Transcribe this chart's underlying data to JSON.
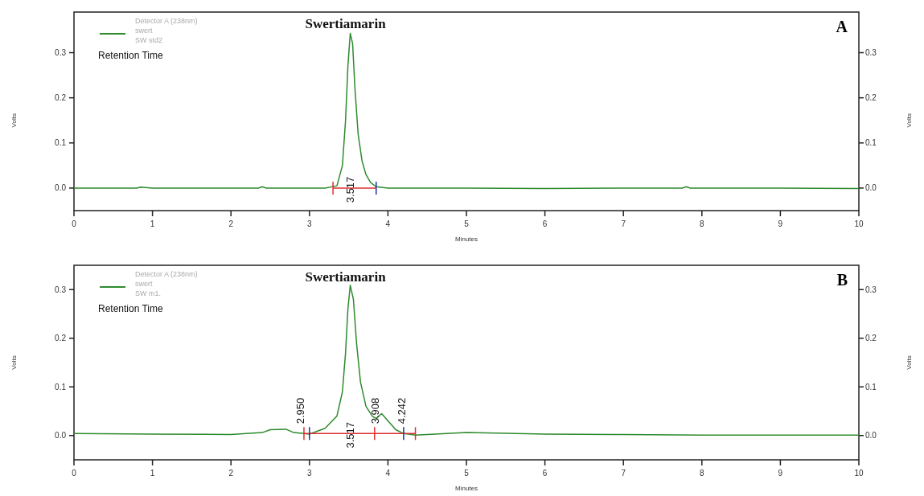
{
  "chart_data": [
    {
      "type": "line",
      "title": "A",
      "xlabel": "Minutes",
      "ylabel": "Volts",
      "y2label": "Volts",
      "legend": "top left",
      "legend_title": "Retention Time",
      "xlim": [
        0,
        10
      ],
      "xticks": [
        0,
        1,
        2,
        3,
        4,
        5,
        6,
        7,
        8,
        9,
        10
      ],
      "ylim": [
        -0.05,
        0.39
      ],
      "yticks": [
        {
          "value": 0,
          "label": "0.0"
        },
        0.1,
        0.2,
        0.3
      ],
      "y2lim": [
        -0.05,
        0.39
      ],
      "y2ticks": [
        {
          "value": 0,
          "label": "0.0"
        },
        0.1,
        0.2,
        0.3
      ],
      "grid": false,
      "series": [
        {
          "name": "Detector A (238nm)\nswert\nSW std2",
          "color": "#2e8b2e",
          "x": [
            0,
            0.5,
            0.8,
            0.85,
            1,
            2,
            2.35,
            2.4,
            2.45,
            3.2,
            3.35,
            3.42,
            3.46,
            3.49,
            3.52,
            3.55,
            3.58,
            3.62,
            3.67,
            3.72,
            3.78,
            3.85,
            4,
            5,
            6,
            7,
            7.75,
            7.8,
            7.85,
            9,
            10
          ],
          "values": [
            0,
            0,
            0,
            0.002,
            0,
            0,
            0,
            0.003,
            0,
            0,
            0.005,
            0.05,
            0.15,
            0.27,
            0.343,
            0.32,
            0.22,
            0.12,
            0.06,
            0.03,
            0.012,
            0.003,
            0,
            0,
            -0.001,
            0,
            0,
            0.003,
            0,
            0,
            -0.001
          ]
        },
        {
          "color": "#e03030",
          "x": [
            3.3,
            3.85
          ],
          "values": [
            0,
            0
          ]
        }
      ],
      "annotations": [
        "Swertiamarin",
        {
          "text": "3.517",
          "x": 3.517,
          "y": 0
        }
      ]
    },
    {
      "type": "line",
      "title": "B",
      "xlabel": "Minutes",
      "ylabel": "Volts",
      "y2label": "Volts",
      "legend": "top left",
      "legend_title": "Retention Time",
      "xlim": [
        0,
        10
      ],
      "xticks": [
        0,
        1,
        2,
        3,
        4,
        5,
        6,
        7,
        8,
        9,
        10
      ],
      "ylim": [
        -0.05,
        0.35
      ],
      "yticks": [
        {
          "value": 0,
          "label": "0.0"
        },
        0.1,
        0.2,
        0.3
      ],
      "y2lim": [
        -0.05,
        0.35
      ],
      "y2ticks": [
        {
          "value": 0,
          "label": "0.0"
        },
        0.1,
        0.2,
        0.3
      ],
      "grid": false,
      "series": [
        {
          "name": "Detector A (238nm)\nswert\nSW m1.",
          "color": "#2e8b2e",
          "x": [
            0,
            1,
            2,
            2.4,
            2.5,
            2.7,
            2.8,
            3,
            3.2,
            3.35,
            3.42,
            3.46,
            3.49,
            3.52,
            3.56,
            3.6,
            3.65,
            3.72,
            3.8,
            3.85,
            3.92,
            4,
            4.1,
            4.2,
            4.35,
            5,
            6,
            7,
            8,
            9,
            10
          ],
          "values": [
            0.004,
            0.003,
            0.002,
            0.006,
            0.012,
            0.013,
            0.006,
            0.003,
            0.015,
            0.04,
            0.09,
            0.17,
            0.26,
            0.309,
            0.28,
            0.19,
            0.11,
            0.06,
            0.04,
            0.035,
            0.045,
            0.03,
            0.012,
            0.004,
            0.001,
            0.006,
            0.003,
            0.002,
            0.001,
            0.001,
            0.001
          ]
        },
        {
          "color": "#e03030",
          "x": [
            2.93,
            3,
            3.83,
            4.2,
            4.35
          ],
          "values": [
            0.004,
            0.004,
            0.004,
            0.004,
            0.004
          ]
        }
      ],
      "annotations": [
        "Swertiamarin",
        {
          "text": "2.950",
          "x": 2.95,
          "y": 0.004
        },
        {
          "text": "3.517",
          "x": 3.517,
          "y": 0.004
        },
        {
          "text": "3.908",
          "x": 3.908,
          "y": 0.004
        },
        {
          "text": "4.242",
          "x": 4.242,
          "y": 0.004
        }
      ]
    }
  ]
}
